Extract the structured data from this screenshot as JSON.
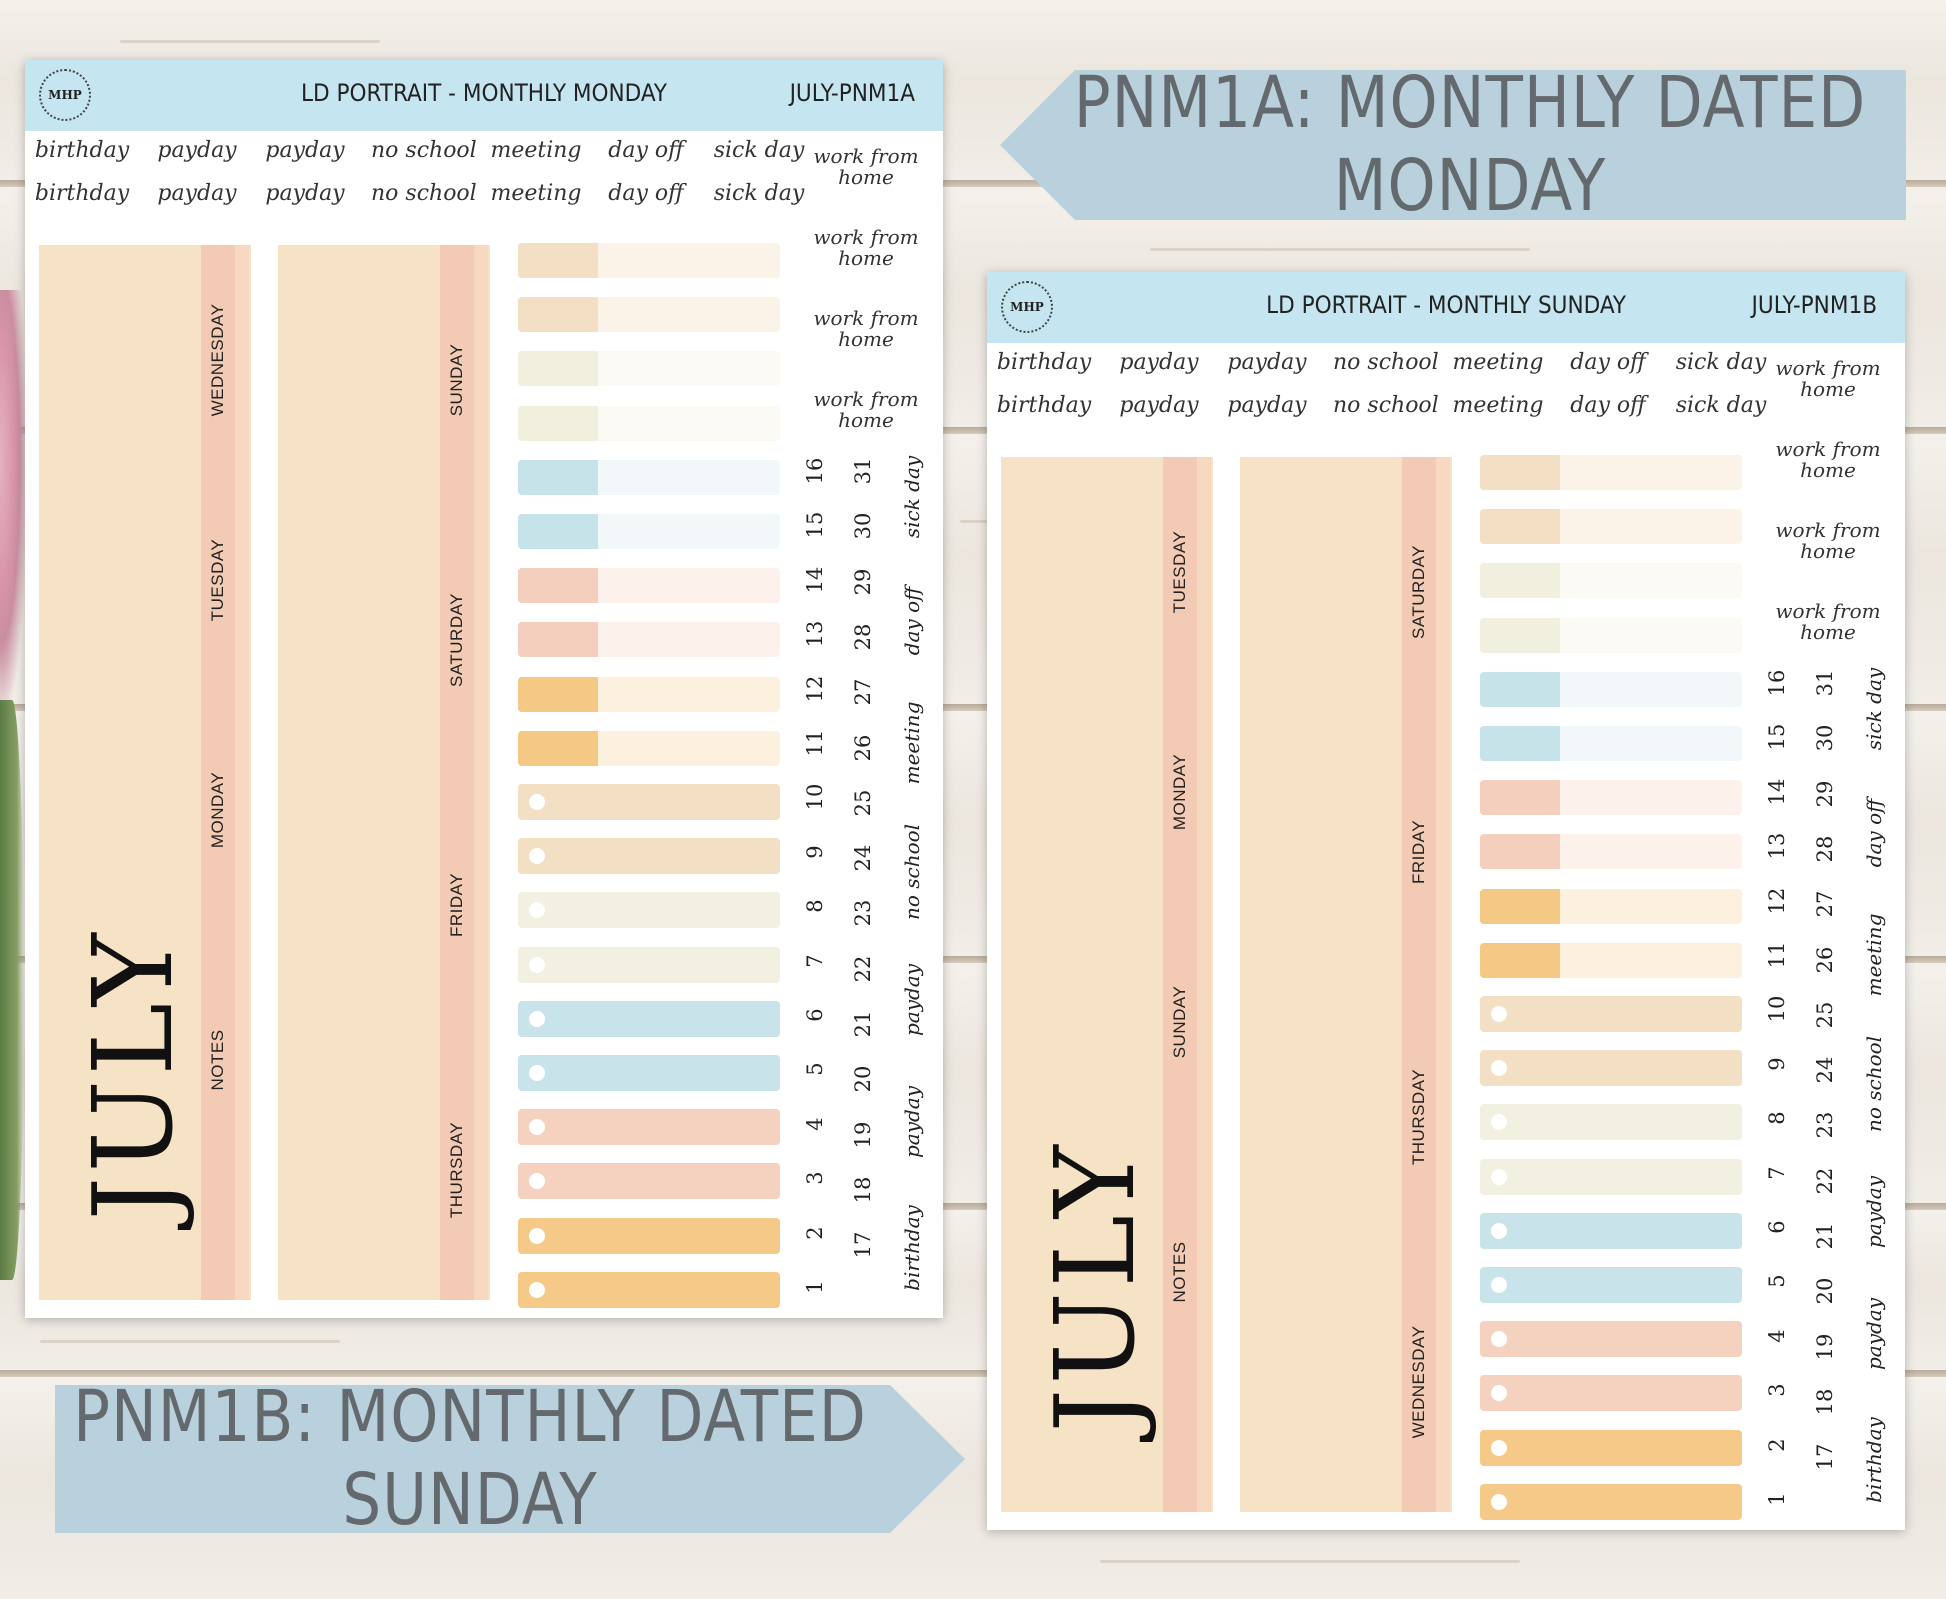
{
  "banners": {
    "top": "PNM1A: MONTHLY DATED MONDAY",
    "bottom": "PNM1B: MONTHLY DATED SUNDAY"
  },
  "logo_text": "MHP",
  "colors": {
    "header": "#c5e6f0",
    "banner": "#b8d1dd",
    "panel": "#f6e3c6",
    "stripe": "#f3cbb4",
    "tan": "#f3e0c4",
    "cream": "#f2f0e0",
    "blue": "#c8e3ea",
    "peach": "#f5d2bf",
    "orange": "#f5ca88"
  },
  "sheets": [
    {
      "title": "LD PORTRAIT - MONTHLY MONDAY",
      "code": "JULY-PNM1A",
      "month": "JULY",
      "word_rows": [
        [
          "birthday",
          "payday",
          "payday",
          "no school",
          "meeting",
          "day off",
          "sick day"
        ],
        [
          "birthday",
          "payday",
          "payday",
          "no school",
          "meeting",
          "day off",
          "sick day"
        ]
      ],
      "work_from_home": [
        "work from home",
        "work from home",
        "work from home",
        "work from home"
      ],
      "panel1_days": [
        "WEDNESDAY",
        "TUESDAY",
        "MONDAY",
        "NOTES"
      ],
      "panel2_days": [
        "SUNDAY",
        "SATURDAY",
        "FRIDAY",
        "THURSDAY"
      ],
      "dates_col1": [
        "16",
        "15",
        "14",
        "13",
        "12",
        "11",
        "10",
        "9",
        "8",
        "7",
        "6",
        "5",
        "4",
        "3",
        "2",
        "1"
      ],
      "dates_col2": [
        "31",
        "30",
        "29",
        "28",
        "27",
        "26",
        "25",
        "24",
        "23",
        "22",
        "21",
        "20",
        "19",
        "18",
        "17"
      ],
      "vertical_words": [
        "sick day",
        "day off",
        "meeting",
        "no school",
        "payday",
        "payday",
        "birthday"
      ]
    },
    {
      "title": "LD PORTRAIT - MONTHLY SUNDAY",
      "code": "JULY-PNM1B",
      "month": "JULY",
      "word_rows": [
        [
          "birthday",
          "payday",
          "payday",
          "no school",
          "meeting",
          "day off",
          "sick day"
        ],
        [
          "birthday",
          "payday",
          "payday",
          "no school",
          "meeting",
          "day off",
          "sick day"
        ]
      ],
      "work_from_home": [
        "work from home",
        "work from home",
        "work from home",
        "work from home"
      ],
      "panel1_days": [
        "TUESDAY",
        "MONDAY",
        "SUNDAY",
        "NOTES"
      ],
      "panel2_days": [
        "SATURDAY",
        "FRIDAY",
        "THURSDAY",
        "WEDNESDAY"
      ],
      "dates_col1": [
        "16",
        "15",
        "14",
        "13",
        "12",
        "11",
        "10",
        "9",
        "8",
        "7",
        "6",
        "5",
        "4",
        "3",
        "2",
        "1"
      ],
      "dates_col2": [
        "31",
        "30",
        "29",
        "28",
        "27",
        "26",
        "25",
        "24",
        "23",
        "22",
        "21",
        "20",
        "19",
        "18",
        "17"
      ],
      "vertical_words": [
        "sick day",
        "day off",
        "meeting",
        "no school",
        "payday",
        "payday",
        "birthday"
      ]
    }
  ]
}
